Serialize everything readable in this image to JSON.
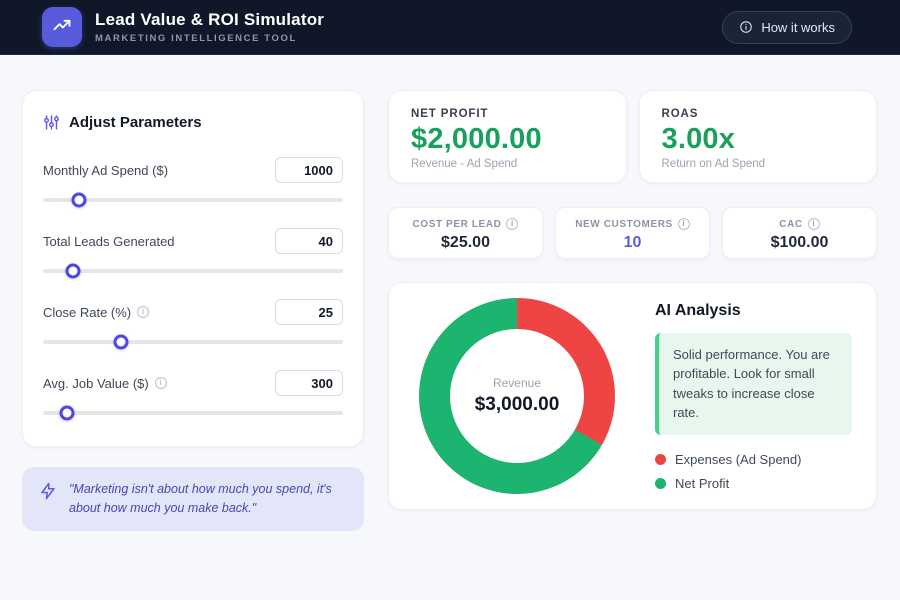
{
  "colors": {
    "accent": "#585cdc",
    "slider": "#4f46e5",
    "green": "#18a05c",
    "red": "#ef4444",
    "donut_green": "#1db46f",
    "header_bg": "#0f1728"
  },
  "header": {
    "title": "Lead Value & ROI Simulator",
    "subtitle": "MARKETING INTELLIGENCE TOOL",
    "help_button": "How it works"
  },
  "panel": {
    "title": "Adjust Parameters",
    "parameters": [
      {
        "label": "Monthly Ad Spend ($)",
        "value": "1000",
        "percent": 12
      },
      {
        "label": "Total Leads Generated",
        "value": "40",
        "percent": 10
      },
      {
        "label": "Close Rate (%)",
        "value": "25",
        "percent": 26
      },
      {
        "label": "Avg. Job Value ($)",
        "value": "300",
        "percent": 8
      }
    ]
  },
  "quote": {
    "text": "\"Marketing isn't about how much you spend, it's about how much you make back.\""
  },
  "kpis": {
    "net_profit": {
      "label": "NET PROFIT",
      "value": "$2,000.00",
      "subtitle": "Revenue - Ad Spend",
      "color": "#18a05c"
    },
    "roas": {
      "label": "ROAS",
      "value": "3.00x",
      "subtitle": "Return on Ad Spend",
      "color": "#18a05c"
    }
  },
  "stats": [
    {
      "label": "COST PER LEAD",
      "value": "$25.00",
      "color": "#1f2937"
    },
    {
      "label": "NEW CUSTOMERS",
      "value": "10",
      "color": "#5b5bd6"
    },
    {
      "label": "CAC",
      "value": "$100.00",
      "color": "#1f2937"
    }
  ],
  "analysis": {
    "title": "AI Analysis",
    "message": "Solid performance. You are profitable. Look for small tweaks to increase close rate.",
    "legend": [
      {
        "label": "Expenses (Ad Spend)",
        "color": "#ef4444"
      },
      {
        "label": "Net Profit",
        "color": "#1db46f"
      }
    ]
  },
  "chart_data": {
    "type": "pie",
    "donut": true,
    "center_label": "Revenue",
    "center_value": "$3,000.00",
    "total": 3000,
    "start_angle_deg": 0,
    "direction": "clockwise",
    "legend_position": "right",
    "segments": [
      {
        "name": "Expenses (Ad Spend)",
        "value": 1000,
        "color": "#ef4444"
      },
      {
        "name": "Net Profit",
        "value": 2000,
        "color": "#1db46f"
      }
    ]
  }
}
